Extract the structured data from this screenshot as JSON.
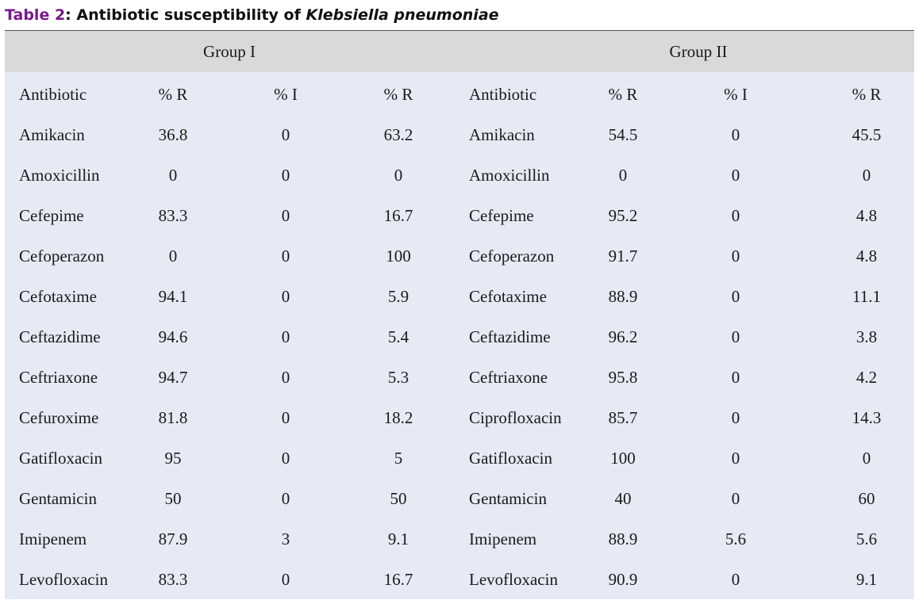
{
  "caption": {
    "label": "Table 2",
    "text": ": Antibiotic susceptibility of ",
    "species": "Klebsiella  pneumoniae"
  },
  "groups": [
    "Group I",
    "Group II"
  ],
  "columns": [
    "Antibiotic",
    "% R",
    "% I",
    "% R",
    "Antibiotic",
    "% R",
    "% I",
    "% R"
  ],
  "rows": [
    [
      "Amikacin",
      "36.8",
      "0",
      "63.2",
      "Amikacin",
      "54.5",
      "0",
      "45.5"
    ],
    [
      "Amoxicillin",
      "0",
      "0",
      "0",
      "Amoxicillin",
      "0",
      "0",
      "0"
    ],
    [
      "Cefepime",
      "83.3",
      "0",
      "16.7",
      "Cefepime",
      "95.2",
      "0",
      "4.8"
    ],
    [
      "Cefoperazon",
      "0",
      "0",
      "100",
      "Cefoperazon",
      "91.7",
      "0",
      "4.8"
    ],
    [
      "Cefotaxime",
      "94.1",
      "0",
      "5.9",
      "Cefotaxime",
      "88.9",
      "0",
      "11.1"
    ],
    [
      "Ceftazidime",
      "94.6",
      "0",
      "5.4",
      "Ceftazidime",
      "96.2",
      "0",
      "3.8"
    ],
    [
      "Ceftriaxone",
      "94.7",
      "0",
      "5.3",
      "Ceftriaxone",
      "95.8",
      "0",
      "4.2"
    ],
    [
      "Cefuroxime",
      "81.8",
      "0",
      "18.2",
      "Ciprofloxacin",
      "85.7",
      "0",
      "14.3"
    ],
    [
      "Gatifloxacin",
      "95",
      "0",
      "5",
      "Gatifloxacin",
      "100",
      "0",
      "0"
    ],
    [
      "Gentamicin",
      "50",
      "0",
      "50",
      "Gentamicin",
      "40",
      "0",
      "60"
    ],
    [
      "Imipenem",
      "87.9",
      "3",
      "9.1",
      "Imipenem",
      "88.9",
      "5.6",
      "5.6"
    ],
    [
      "Levofloxacin",
      "83.3",
      "0",
      "16.7",
      "Levofloxacin",
      "90.9",
      "0",
      "9.1"
    ]
  ]
}
